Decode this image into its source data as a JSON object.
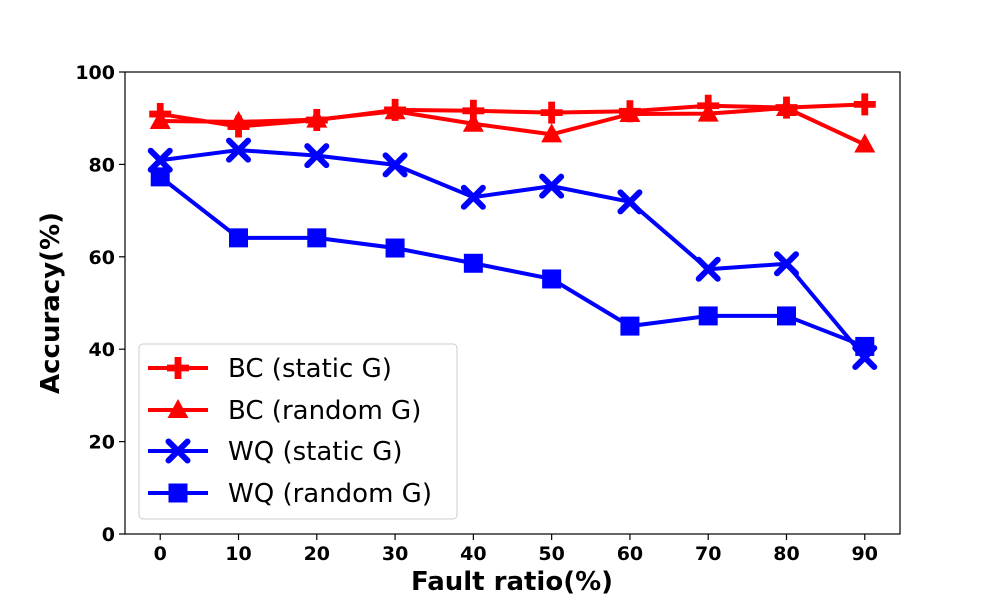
{
  "chart_data": {
    "type": "line",
    "title": "",
    "xlabel": "Fault ratio(%)",
    "ylabel": "Accuracy(%)",
    "x": [
      0,
      10,
      20,
      30,
      40,
      50,
      60,
      70,
      80,
      90
    ],
    "xlim": [
      -4.5,
      94.5
    ],
    "ylim": [
      0,
      100
    ],
    "xticks": [
      0,
      10,
      20,
      30,
      40,
      50,
      60,
      70,
      80,
      90
    ],
    "yticks": [
      0,
      20,
      40,
      60,
      80,
      100
    ],
    "grid": false,
    "legend_position": "lower-left",
    "series": [
      {
        "name": "BC (static G)",
        "color": "#ff0000",
        "marker": "plus",
        "values": [
          90.9,
          88.2,
          89.6,
          91.8,
          91.6,
          91.2,
          91.5,
          92.7,
          92.3,
          93.0
        ]
      },
      {
        "name": "BC (random G)",
        "color": "#ff0000",
        "marker": "triangle",
        "values": [
          89.4,
          89.2,
          89.7,
          91.5,
          88.8,
          86.5,
          90.9,
          91.0,
          92.2,
          84.3
        ]
      },
      {
        "name": "WQ (static G)",
        "color": "#0000ff",
        "marker": "x",
        "values": [
          80.9,
          83.1,
          81.9,
          79.9,
          72.9,
          75.3,
          71.9,
          57.3,
          58.5,
          38.2
        ]
      },
      {
        "name": "WQ (random G)",
        "color": "#0000ff",
        "marker": "square",
        "values": [
          77.3,
          64.1,
          64.1,
          61.9,
          58.6,
          55.2,
          45.0,
          47.2,
          47.2,
          40.6
        ]
      }
    ]
  }
}
